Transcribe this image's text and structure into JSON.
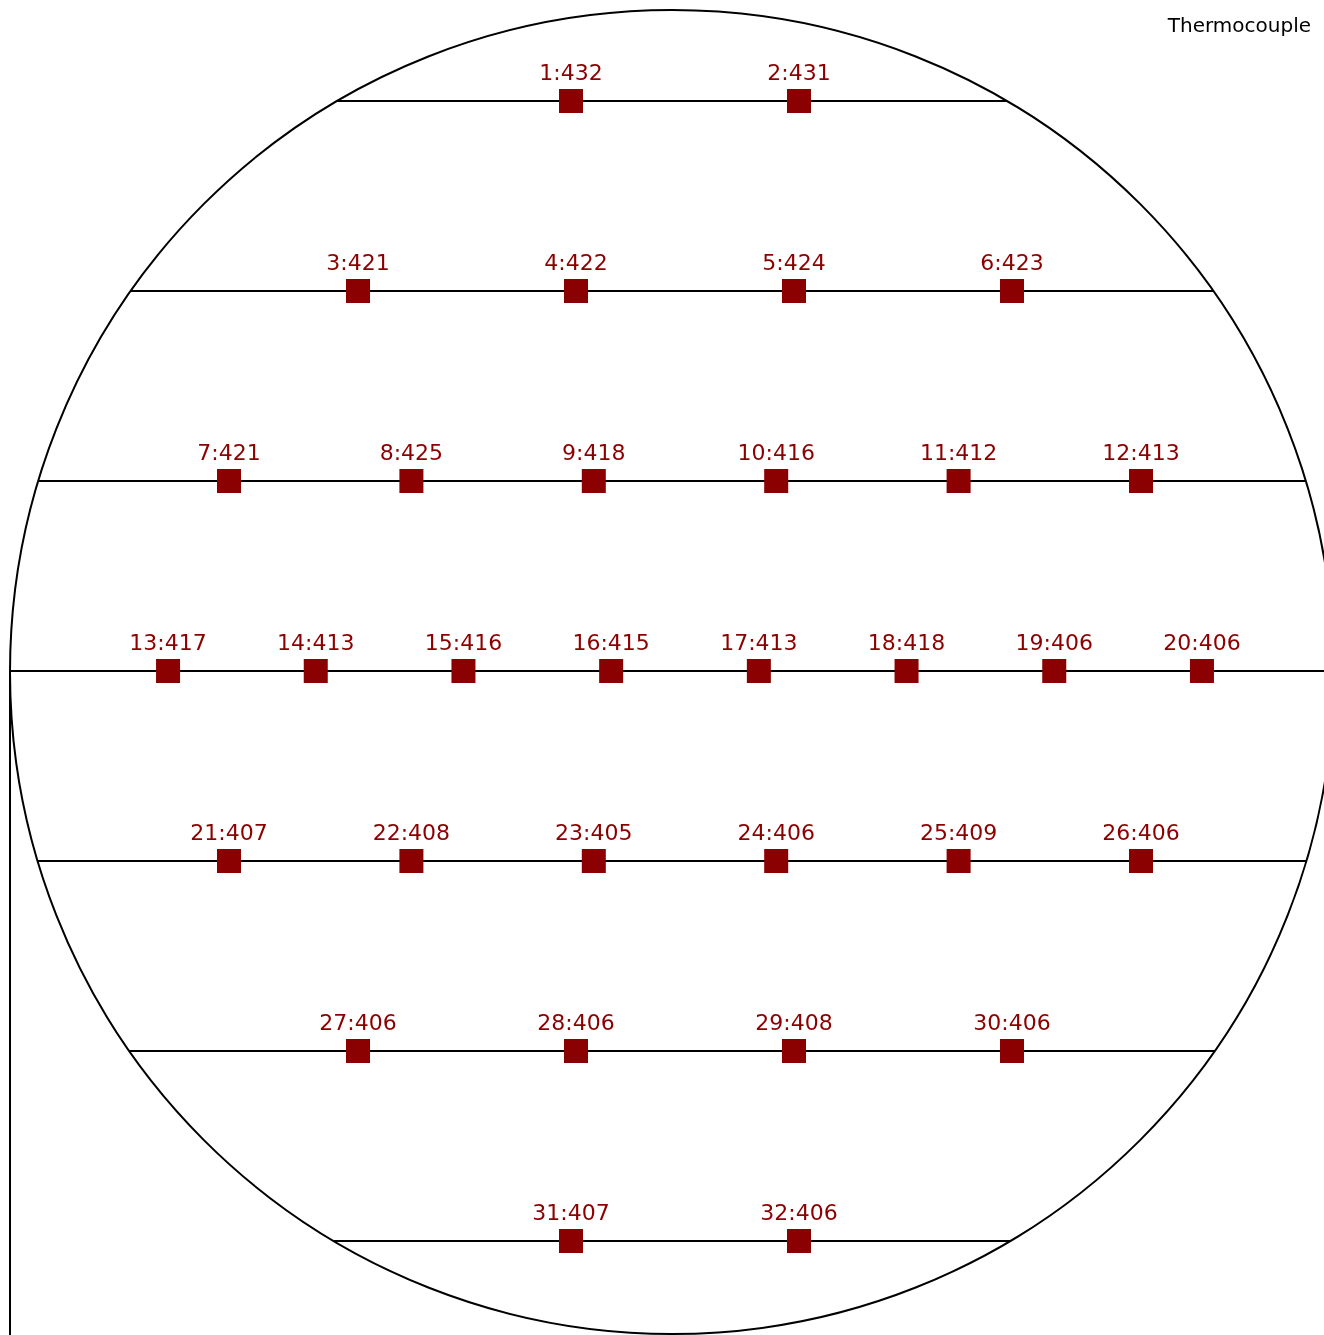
{
  "chart_data": {
    "type": "other",
    "title": "Thermocouple",
    "color": "#8b0000",
    "values": [
      432,
      431,
      421,
      422,
      424,
      423,
      421,
      425,
      418,
      416,
      412,
      413,
      417,
      413,
      416,
      415,
      413,
      418,
      406,
      406,
      407,
      408,
      405,
      406,
      409,
      406,
      406,
      406,
      408,
      406,
      407,
      406
    ],
    "value_labels": [
      "1:432",
      "2:431",
      "3:421",
      "4:422",
      "5:424",
      "6:423",
      "7:421",
      "8:425",
      "9:418",
      "10:416",
      "11:412",
      "12:413",
      "13:417",
      "14:413",
      "15:416",
      "16:415",
      "17:413",
      "18:418",
      "19:406",
      "20:406",
      "21:407",
      "22:408",
      "23:405",
      "24:406",
      "25:409",
      "26:406",
      "27:406",
      "28:406",
      "29:408",
      "30:406",
      "31:407",
      "32:406"
    ]
  }
}
